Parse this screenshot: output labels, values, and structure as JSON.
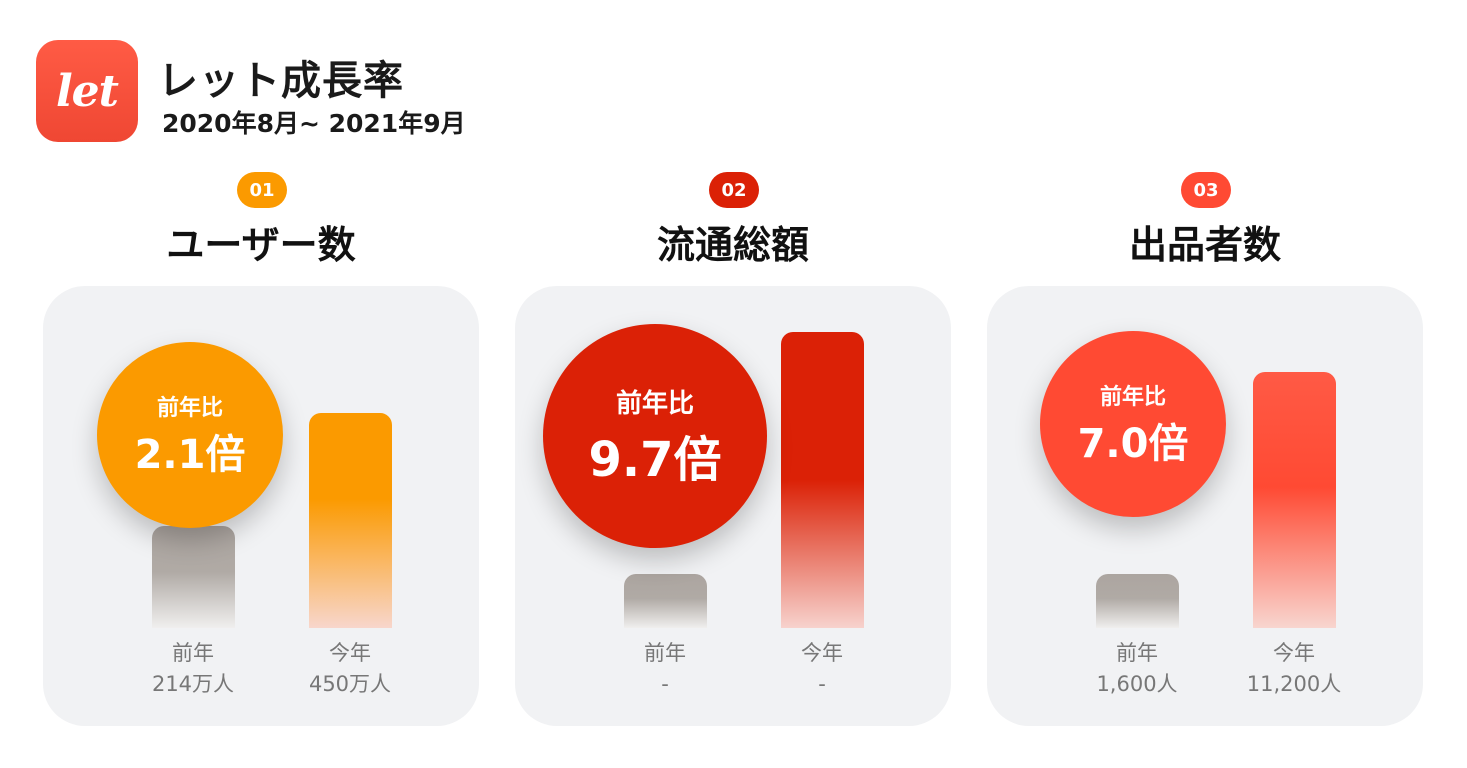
{
  "header": {
    "logo_text": "let",
    "title": "レット成長率",
    "period": "2020年8月~ 2021年9月"
  },
  "colors": {
    "accent_orange": "#fb9a00",
    "accent_red": "#db2106",
    "accent_coral": "#ff4a33",
    "previous_bar": "#aca5a0",
    "panel_bg": "#f1f2f4"
  },
  "chart_data": [
    {
      "type": "bar",
      "number": "01",
      "title": "ユーザー数",
      "ratio_label": "前年比",
      "ratio_value": "2.1倍",
      "categories": [
        "前年",
        "今年"
      ],
      "value_labels": [
        "214万人",
        "450万人"
      ],
      "values": [
        214,
        450
      ],
      "unit": "万人"
    },
    {
      "type": "bar",
      "number": "02",
      "title": "流通総額",
      "ratio_label": "前年比",
      "ratio_value": "9.7倍",
      "categories": [
        "前年",
        "今年"
      ],
      "value_labels": [
        "-",
        "-"
      ],
      "values": [
        1,
        9.7
      ],
      "unit": ""
    },
    {
      "type": "bar",
      "number": "03",
      "title": "出品者数",
      "ratio_label": "前年比",
      "ratio_value": "7.0倍",
      "categories": [
        "前年",
        "今年"
      ],
      "value_labels": [
        "1,600人",
        "11,200人"
      ],
      "values": [
        1600,
        11200
      ],
      "unit": "人"
    }
  ]
}
